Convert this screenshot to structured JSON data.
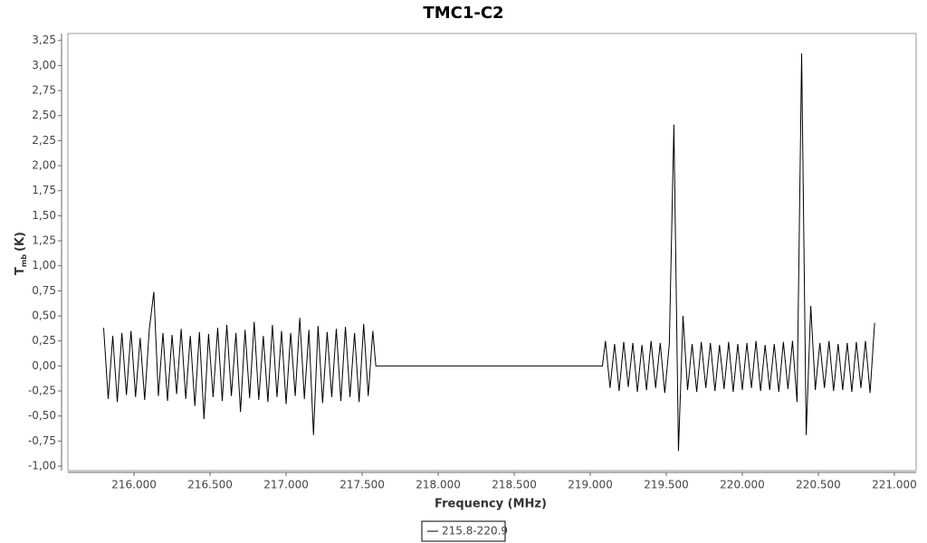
{
  "chart_data": {
    "type": "line",
    "title": "TMC1-C2",
    "x_label": "Frequency (MHz)",
    "y_label": "T",
    "y_label_sub": "mb",
    "y_label_unit": "(K)",
    "xlim": [
      215.565,
      221.143
    ],
    "ylim": [
      -1.045,
      3.32
    ],
    "xticks": [
      {
        "value": 216,
        "label": "216.000"
      },
      {
        "value": 216.5,
        "label": "216.500"
      },
      {
        "value": 217,
        "label": "217.000"
      },
      {
        "value": 217.5,
        "label": "217.500"
      },
      {
        "value": 218,
        "label": "218.000"
      },
      {
        "value": 218.5,
        "label": "218.500"
      },
      {
        "value": 219,
        "label": "219.000"
      },
      {
        "value": 219.5,
        "label": "219.500"
      },
      {
        "value": 220,
        "label": "220.000"
      },
      {
        "value": 220.5,
        "label": "220.500"
      },
      {
        "value": 221,
        "label": "221.000"
      }
    ],
    "yticks": [
      {
        "value": -1,
        "label": "-1,00"
      },
      {
        "value": -0.75,
        "label": "-0,75"
      },
      {
        "value": -0.5,
        "label": "-0,50"
      },
      {
        "value": -0.25,
        "label": "-0,25"
      },
      {
        "value": 0,
        "label": "0,00"
      },
      {
        "value": 0.25,
        "label": "0,25"
      },
      {
        "value": 0.5,
        "label": "0,50"
      },
      {
        "value": 0.75,
        "label": "0,75"
      },
      {
        "value": 1,
        "label": "1,00"
      },
      {
        "value": 1.25,
        "label": "1,25"
      },
      {
        "value": 1.5,
        "label": "1,50"
      },
      {
        "value": 1.75,
        "label": "1,75"
      },
      {
        "value": 2,
        "label": "2,00"
      },
      {
        "value": 2.25,
        "label": "2,25"
      },
      {
        "value": 2.5,
        "label": "2,50"
      },
      {
        "value": 2.75,
        "label": "2,75"
      },
      {
        "value": 3,
        "label": "3,00"
      },
      {
        "value": 3.25,
        "label": "3,25"
      }
    ],
    "legend": "bottom",
    "series": [
      {
        "name": "215.8-220.9",
        "color": "#000000",
        "x": [
          215.8,
          215.83,
          215.86,
          215.89,
          215.92,
          215.95,
          215.98,
          216.01,
          216.04,
          216.07,
          216.1,
          216.13,
          216.16,
          216.19,
          216.22,
          216.25,
          216.28,
          216.31,
          216.34,
          216.37,
          216.4,
          216.43,
          216.46,
          216.49,
          216.52,
          216.55,
          216.58,
          216.61,
          216.64,
          216.67,
          216.7,
          216.73,
          216.76,
          216.79,
          216.82,
          216.85,
          216.88,
          216.91,
          216.94,
          216.97,
          217,
          217.03,
          217.06,
          217.09,
          217.12,
          217.15,
          217.18,
          217.21,
          217.24,
          217.27,
          217.3,
          217.33,
          217.36,
          217.39,
          217.42,
          217.45,
          217.48,
          217.51,
          217.54,
          217.57,
          217.59,
          219.08,
          219.1,
          219.13,
          219.16,
          219.19,
          219.22,
          219.25,
          219.28,
          219.31,
          219.34,
          219.37,
          219.4,
          219.43,
          219.46,
          219.49,
          219.52,
          219.55,
          219.58,
          219.61,
          219.64,
          219.67,
          219.7,
          219.73,
          219.76,
          219.79,
          219.82,
          219.85,
          219.88,
          219.91,
          219.94,
          219.97,
          220,
          220.03,
          220.06,
          220.09,
          220.12,
          220.15,
          220.18,
          220.21,
          220.24,
          220.27,
          220.3,
          220.33,
          220.36,
          220.39,
          220.42,
          220.45,
          220.48,
          220.51,
          220.54,
          220.57,
          220.6,
          220.63,
          220.66,
          220.69,
          220.72,
          220.75,
          220.78,
          220.81,
          220.84,
          220.87
        ],
        "values": [
          0.38,
          -0.33,
          0.3,
          -0.36,
          0.33,
          -0.29,
          0.35,
          -0.31,
          0.28,
          -0.34,
          0.36,
          0.74,
          -0.3,
          0.33,
          -0.35,
          0.31,
          -0.28,
          0.37,
          -0.33,
          0.3,
          -0.4,
          0.34,
          -0.53,
          0.32,
          -0.31,
          0.38,
          -0.35,
          0.41,
          -0.3,
          0.33,
          -0.46,
          0.36,
          -0.32,
          0.44,
          -0.34,
          0.3,
          -0.36,
          0.41,
          -0.31,
          0.35,
          -0.38,
          0.33,
          -0.3,
          0.48,
          -0.33,
          0.36,
          -0.69,
          0.4,
          -0.37,
          0.34,
          -0.31,
          0.37,
          -0.35,
          0.39,
          -0.31,
          0.33,
          -0.36,
          0.42,
          -0.3,
          0.35,
          0,
          0,
          0.25,
          -0.22,
          0.22,
          -0.25,
          0.24,
          -0.21,
          0.23,
          -0.26,
          0.21,
          -0.24,
          0.25,
          -0.22,
          0.23,
          -0.27,
          0.22,
          2.41,
          -0.85,
          0.5,
          -0.24,
          0.22,
          -0.26,
          0.24,
          -0.22,
          0.23,
          -0.25,
          0.21,
          -0.23,
          0.24,
          -0.26,
          0.22,
          -0.24,
          0.23,
          -0.22,
          0.25,
          -0.25,
          0.21,
          -0.24,
          0.22,
          -0.26,
          0.24,
          -0.23,
          0.25,
          -0.36,
          3.12,
          -0.69,
          0.6,
          -0.24,
          0.23,
          -0.22,
          0.25,
          -0.25,
          0.22,
          -0.24,
          0.23,
          -0.26,
          0.24,
          -0.22,
          0.25,
          -0.27,
          0.43
        ]
      }
    ]
  }
}
